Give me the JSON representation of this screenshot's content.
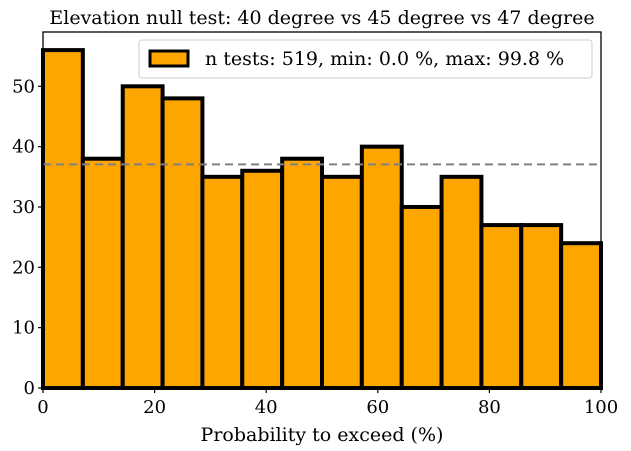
{
  "chart_data": {
    "type": "bar",
    "title": "Elevation null test: 40 degree vs 45 degree vs 47 degree",
    "xlabel": "Probability to exceed (%)",
    "ylabel": "",
    "xlim": [
      0,
      100
    ],
    "ylim": [
      0,
      59
    ],
    "xticks": [
      0,
      20,
      40,
      60,
      80,
      100
    ],
    "yticks": [
      0,
      10,
      20,
      30,
      40,
      50
    ],
    "bin_edges": [
      0,
      7.14,
      14.29,
      21.43,
      28.57,
      35.71,
      42.86,
      50,
      57.14,
      64.29,
      71.43,
      78.57,
      85.71,
      92.86,
      100
    ],
    "values": [
      56,
      38,
      50,
      48,
      35,
      36,
      38,
      35,
      40,
      30,
      35,
      27,
      27,
      24
    ],
    "reference_line": {
      "y": 37.07,
      "style": "dashed",
      "color": "#808080"
    },
    "legend": {
      "label": "n tests: 519, min: 0.0 %, max: 99.8 %",
      "placement": "top-right"
    },
    "bar_color": "#ffa500",
    "edge_color": "#000000",
    "grid": false
  }
}
